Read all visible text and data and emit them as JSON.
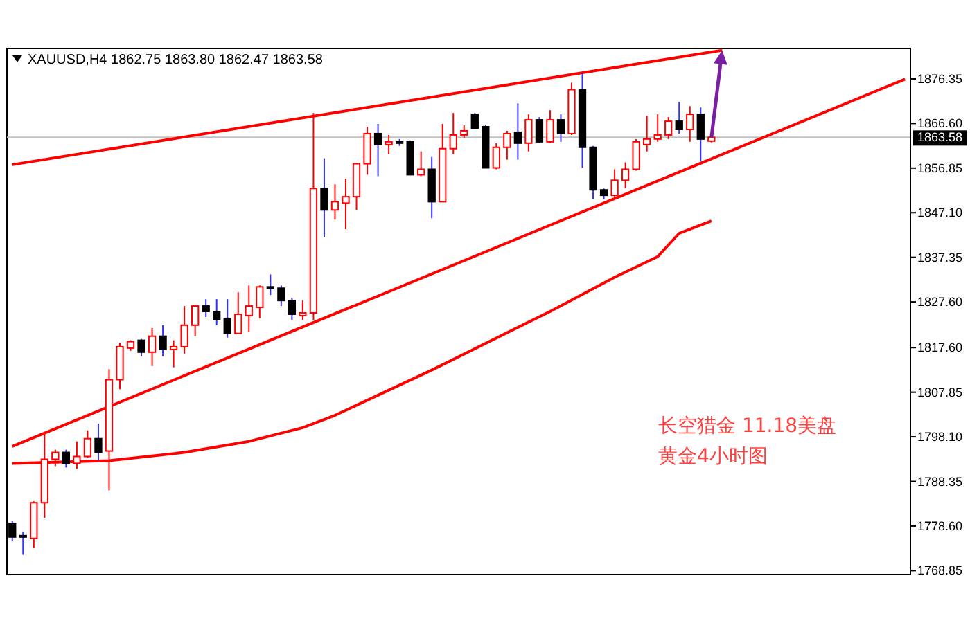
{
  "chart_data": {
    "type": "candlestick",
    "title": "XAUUSD,H4  1862.75 1863.80 1862.47 1863.58",
    "categories": [
      null,
      null,
      null,
      null,
      null,
      null,
      null,
      null,
      null,
      null,
      null,
      null,
      null,
      null,
      null,
      null,
      null,
      null,
      null,
      null,
      null,
      null,
      null,
      null,
      null,
      null,
      null,
      null,
      null,
      null,
      null,
      null,
      null,
      null,
      null,
      null,
      null,
      null,
      null,
      null,
      null,
      null,
      null,
      null,
      null,
      null,
      null,
      null,
      null,
      null,
      null,
      null,
      null,
      null,
      null,
      null,
      null,
      null,
      null,
      null,
      null,
      null,
      null,
      null,
      null,
      null,
      null,
      null,
      null,
      null,
      null,
      null,
      null,
      null,
      null,
      null,
      null,
      null,
      null,
      null,
      null,
      null,
      null,
      null
    ],
    "ohlc": [
      [
        1779.2,
        1779.8,
        1775.3,
        1776.2
      ],
      [
        1776.5,
        1777.4,
        1772.3,
        1776.2
      ],
      [
        1775.9,
        1784.0,
        1773.8,
        1783.7
      ],
      [
        1783.7,
        1798.6,
        1780.4,
        1793.2
      ],
      [
        1793.2,
        1795.3,
        1791.7,
        1794.7
      ],
      [
        1794.7,
        1795.3,
        1791.4,
        1792.3
      ],
      [
        1792.3,
        1797.1,
        1791.1,
        1793.8
      ],
      [
        1793.8,
        1799.5,
        1793.5,
        1797.7
      ],
      [
        1797.7,
        1801.0,
        1792.9,
        1794.7
      ],
      [
        1795.0,
        1812.9,
        1786.4,
        1810.6
      ],
      [
        1810.6,
        1818.6,
        1808.5,
        1817.8
      ],
      [
        1817.5,
        1819.2,
        1816.9,
        1818.9
      ],
      [
        1819.2,
        1819.5,
        1815.7,
        1816.6
      ],
      [
        1816.6,
        1821.9,
        1813.6,
        1820.1
      ],
      [
        1820.1,
        1822.5,
        1815.7,
        1817.2
      ],
      [
        1817.2,
        1819.2,
        1813.3,
        1817.8
      ],
      [
        1817.8,
        1826.7,
        1816.3,
        1822.5
      ],
      [
        1822.5,
        1827.0,
        1820.1,
        1826.7
      ],
      [
        1826.7,
        1828.2,
        1824.3,
        1825.5
      ],
      [
        1825.5,
        1828.2,
        1822.5,
        1823.7
      ],
      [
        1824.0,
        1828.2,
        1819.8,
        1820.7
      ],
      [
        1820.7,
        1829.7,
        1820.7,
        1824.9
      ],
      [
        1824.6,
        1831.2,
        1821.0,
        1826.7
      ],
      [
        1826.4,
        1831.2,
        1824.0,
        1830.9
      ],
      [
        1830.9,
        1833.6,
        1829.1,
        1830.6
      ],
      [
        1830.6,
        1831.2,
        1826.7,
        1827.9
      ],
      [
        1827.9,
        1828.5,
        1823.7,
        1824.9
      ],
      [
        1824.6,
        1827.9,
        1823.7,
        1825.2
      ],
      [
        1825.2,
        1868.9,
        1823.7,
        1852.4
      ],
      [
        1852.4,
        1859.0,
        1841.7,
        1847.7
      ],
      [
        1847.7,
        1853.3,
        1845.6,
        1849.5
      ],
      [
        1849.2,
        1854.5,
        1843.5,
        1850.6
      ],
      [
        1850.6,
        1857.8,
        1847.7,
        1857.8
      ],
      [
        1857.8,
        1865.9,
        1855.4,
        1864.4
      ],
      [
        1864.4,
        1866.5,
        1855.1,
        1862.0
      ],
      [
        1862.0,
        1864.1,
        1859.9,
        1862.6
      ],
      [
        1862.6,
        1863.2,
        1861.7,
        1862.4
      ],
      [
        1862.6,
        1862.9,
        1855.4,
        1855.4
      ],
      [
        1855.4,
        1860.5,
        1855.1,
        1856.6
      ],
      [
        1856.6,
        1859.3,
        1845.9,
        1849.5
      ],
      [
        1849.5,
        1866.5,
        1849.5,
        1861.1
      ],
      [
        1861.1,
        1868.9,
        1859.9,
        1864.1
      ],
      [
        1864.1,
        1866.2,
        1863.5,
        1865.0
      ],
      [
        1868.6,
        1868.9,
        1865.6,
        1865.6
      ],
      [
        1865.9,
        1866.2,
        1856.9,
        1856.9
      ],
      [
        1856.9,
        1862.3,
        1856.6,
        1861.4
      ],
      [
        1861.4,
        1865.0,
        1858.7,
        1864.4
      ],
      [
        1864.7,
        1871.0,
        1858.7,
        1862.3
      ],
      [
        1862.3,
        1868.6,
        1860.5,
        1867.4
      ],
      [
        1867.4,
        1868.0,
        1862.3,
        1862.6
      ],
      [
        1862.6,
        1869.5,
        1862.3,
        1867.4
      ],
      [
        1867.4,
        1868.6,
        1862.6,
        1864.4
      ],
      [
        1864.4,
        1875.5,
        1864.1,
        1874.0
      ],
      [
        1874.0,
        1877.6,
        1856.9,
        1861.4
      ],
      [
        1861.4,
        1861.7,
        1850.0,
        1852.1
      ],
      [
        1852.1,
        1852.4,
        1850.0,
        1850.9
      ],
      [
        1850.9,
        1856.6,
        1850.0,
        1854.2
      ],
      [
        1854.2,
        1858.1,
        1852.4,
        1856.6
      ],
      [
        1856.6,
        1863.2,
        1856.3,
        1862.6
      ],
      [
        1862.0,
        1868.3,
        1860.5,
        1863.2
      ],
      [
        1863.2,
        1868.6,
        1862.6,
        1864.1
      ],
      [
        1864.1,
        1868.0,
        1863.2,
        1867.1
      ],
      [
        1867.1,
        1871.3,
        1864.4,
        1865.3
      ],
      [
        1865.3,
        1870.4,
        1862.6,
        1868.6
      ],
      [
        1868.6,
        1870.1,
        1858.4,
        1863.2
      ],
      [
        1862.75,
        1863.8,
        1862.47,
        1863.58
      ],
      null,
      null,
      null,
      null,
      null,
      null,
      null,
      null,
      null,
      null,
      null,
      null,
      null,
      null,
      null,
      null,
      null,
      null
    ],
    "colors": [
      "#000000",
      "#000000",
      "#ff0000",
      "#ff0000",
      "#ff0000",
      "#000000",
      "#ff0000",
      "#ff0000",
      "#000000",
      "#ff0000",
      "#ff0000",
      "#ff0000",
      "#000000",
      "#ff0000",
      "#000000",
      "#ff0000",
      "#ff0000",
      "#ff0000",
      "#000000",
      "#000000",
      "#000000",
      "#ff0000",
      "#ff0000",
      "#ff0000",
      "#000000",
      "#000000",
      "#000000",
      "#ff0000",
      "#ff0000",
      "#000000",
      "#ff0000",
      "#ff0000",
      "#ff0000",
      "#ff0000",
      "#000000",
      "#ff0000",
      "#000000",
      "#000000",
      "#ff0000",
      "#000000",
      "#ff0000",
      "#ff0000",
      "#ff0000",
      "#000000",
      "#000000",
      "#ff0000",
      "#ff0000",
      "#000000",
      "#ff0000",
      "#000000",
      "#ff0000",
      "#000000",
      "#ff0000",
      "#000000",
      "#000000",
      "#000000",
      "#ff0000",
      "#ff0000",
      "#ff0000",
      "#ff0000",
      "#ff0000",
      "#ff0000",
      "#000000",
      "#ff0000",
      "#000000",
      "#ff0000",
      null,
      null,
      null,
      null,
      null,
      null,
      null,
      null,
      null,
      null,
      null,
      null,
      null,
      null,
      null,
      null,
      null,
      null
    ],
    "series": [
      {
        "type": "line",
        "color": "#ff0000",
        "values": [
          1857.6,
          null,
          null,
          null,
          null,
          null,
          null,
          null,
          null,
          null,
          null,
          null,
          null,
          null,
          null,
          null,
          null,
          null,
          null,
          null,
          null,
          null,
          null,
          null,
          null,
          null,
          null,
          null,
          null,
          null,
          null,
          null,
          null,
          null,
          null,
          null,
          null,
          null,
          null,
          null,
          null,
          null,
          null,
          null,
          null,
          null,
          null,
          null,
          null,
          null,
          null,
          null,
          null,
          null,
          null,
          null,
          null,
          null,
          null,
          null,
          null,
          null,
          null,
          null,
          null,
          null,
          1882.6,
          null,
          null,
          null,
          null,
          null,
          null,
          null,
          null,
          null,
          null,
          null,
          null,
          null,
          null,
          null,
          null,
          null
        ]
      },
      {
        "type": "line",
        "color": "#ff0000",
        "values": [
          1796.0,
          null,
          null,
          null,
          null,
          null,
          null,
          null,
          null,
          null,
          null,
          null,
          null,
          null,
          null,
          null,
          null,
          null,
          null,
          null,
          null,
          null,
          null,
          null,
          null,
          null,
          null,
          null,
          null,
          null,
          null,
          null,
          null,
          null,
          null,
          null,
          null,
          null,
          null,
          null,
          null,
          null,
          null,
          null,
          null,
          null,
          null,
          null,
          null,
          null,
          null,
          null,
          null,
          null,
          null,
          null,
          null,
          null,
          null,
          null,
          null,
          null,
          null,
          null,
          null,
          null,
          null,
          null,
          null,
          null,
          null,
          null,
          null,
          null,
          null,
          null,
          null,
          null,
          null,
          null,
          null,
          null,
          null,
          1876.3
        ]
      },
      {
        "type": "line",
        "color": "#ff0000",
        "values": [
          1792.3,
          null,
          null,
          null,
          null,
          null,
          null,
          null,
          null,
          1792.9,
          null,
          null,
          null,
          null,
          null,
          null,
          1794.7,
          null,
          null,
          null,
          null,
          null,
          1797.1,
          null,
          null,
          null,
          null,
          1800.1,
          null,
          null,
          1802.8,
          null,
          null,
          null,
          null,
          null,
          null,
          null,
          null,
          1812.7,
          null,
          null,
          null,
          null,
          null,
          null,
          null,
          null,
          null,
          null,
          1825.5,
          null,
          null,
          null,
          null,
          null,
          1833.0,
          null,
          null,
          null,
          1837.5,
          null,
          1842.6,
          null,
          null,
          1845.3,
          null,
          null,
          null,
          null,
          null,
          null,
          null,
          null,
          null,
          null,
          null,
          null,
          null,
          null,
          null,
          null,
          null,
          null
        ]
      }
    ],
    "ylim": [
      1768.0,
      1883.0
    ],
    "yticks": [
      {
        "value": 1768.85,
        "label": "1768.85"
      },
      {
        "value": 1778.6,
        "label": "1778.60"
      },
      {
        "value": 1788.35,
        "label": "1788.35"
      },
      {
        "value": 1798.1,
        "label": "1798.10"
      },
      {
        "value": 1807.85,
        "label": "1807.85"
      },
      {
        "value": 1817.6,
        "label": "1817.60"
      },
      {
        "value": 1827.6,
        "label": "1827.60"
      },
      {
        "value": 1837.35,
        "label": "1837.35"
      },
      {
        "value": 1847.1,
        "label": "1847.10"
      },
      {
        "value": 1856.85,
        "label": "1856.85"
      },
      {
        "value": 1866.6,
        "label": "1866.60"
      },
      {
        "value": 1876.35,
        "label": "1876.35"
      }
    ],
    "tick_labels": "y",
    "ref_lines": [
      {
        "axis": "y",
        "value": 1863.58,
        "label": "1863.58",
        "color": "#c0c0c0"
      }
    ],
    "annotations": [
      "长空猎金  11.18美盘",
      "黄金4小时图"
    ]
  }
}
